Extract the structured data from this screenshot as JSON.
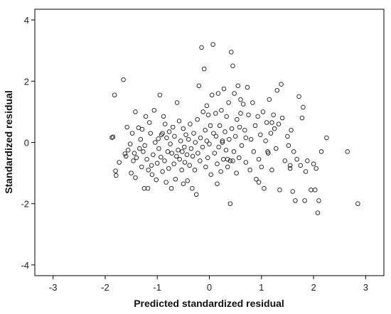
{
  "chart_data": {
    "type": "scatter",
    "title": "",
    "xlabel": "Predicted standardized residual",
    "ylabel": "Standardized residual",
    "xlim": [
      -3.35,
      3.35
    ],
    "ylim": [
      -4.35,
      4.35
    ],
    "xticks": [
      {
        "value": -3,
        "label": "-3"
      },
      {
        "value": -2,
        "label": "-2"
      },
      {
        "value": -1,
        "label": "-1"
      },
      {
        "value": 0,
        "label": "0"
      },
      {
        "value": 1,
        "label": "1"
      },
      {
        "value": 2,
        "label": "2"
      },
      {
        "value": 3,
        "label": "3"
      }
    ],
    "yticks": [
      {
        "value": -4,
        "label": "-4"
      },
      {
        "value": -2,
        "label": "-2"
      },
      {
        "value": 0,
        "label": "0"
      },
      {
        "value": 2,
        "label": "2"
      },
      {
        "value": 4,
        "label": "4"
      }
    ],
    "grid": false,
    "marker": "hollow-circle",
    "points": [
      [
        -1.87,
        0.16
      ],
      [
        -1.85,
        0.18
      ],
      [
        -1.82,
        1.55
      ],
      [
        -1.8,
        -0.93
      ],
      [
        -1.79,
        -1.08
      ],
      [
        -1.73,
        -0.65
      ],
      [
        -1.65,
        2.05
      ],
      [
        -1.62,
        -0.37
      ],
      [
        -1.6,
        -0.45
      ],
      [
        -1.58,
        0.5
      ],
      [
        -1.56,
        -0.25
      ],
      [
        -1.52,
        -0.05
      ],
      [
        -1.5,
        -1.0
      ],
      [
        -1.48,
        0.3
      ],
      [
        -1.46,
        -0.6
      ],
      [
        -1.44,
        -0.35
      ],
      [
        -1.42,
        1.0
      ],
      [
        -1.42,
        -1.15
      ],
      [
        -1.4,
        -0.5
      ],
      [
        -1.36,
        0.48
      ],
      [
        -1.34,
        -0.2
      ],
      [
        -1.32,
        0.1
      ],
      [
        -1.3,
        -0.8
      ],
      [
        -1.29,
        0.43
      ],
      [
        -1.27,
        -0.3
      ],
      [
        -1.25,
        -1.5
      ],
      [
        -1.24,
        -0.1
      ],
      [
        -1.22,
        0.85
      ],
      [
        -1.2,
        -0.55
      ],
      [
        -1.18,
        -1.5
      ],
      [
        -1.17,
        -0.9
      ],
      [
        -1.15,
        0.65
      ],
      [
        -1.13,
        0.3
      ],
      [
        -1.11,
        -0.75
      ],
      [
        -1.1,
        -1.05
      ],
      [
        -1.08,
        -0.4
      ],
      [
        -1.06,
        1.05
      ],
      [
        -1.04,
        0.0
      ],
      [
        -1.02,
        -1.22
      ],
      [
        -1.0,
        -0.68
      ],
      [
        -0.98,
        0.12
      ],
      [
        -0.97,
        -0.2
      ],
      [
        -0.95,
        1.55
      ],
      [
        -0.93,
        -0.48
      ],
      [
        -0.92,
        0.25
      ],
      [
        -0.9,
        -0.95
      ],
      [
        -0.88,
        0.85
      ],
      [
        -0.86,
        -0.6
      ],
      [
        -0.85,
        0.6
      ],
      [
        -0.83,
        -1.3
      ],
      [
        -0.82,
        0.15
      ],
      [
        -0.8,
        -0.3
      ],
      [
        -0.78,
        -0.85
      ],
      [
        -0.77,
        0.35
      ],
      [
        -0.75,
        -0.05
      ],
      [
        -0.73,
        -1.5
      ],
      [
        -0.72,
        -0.35
      ],
      [
        -0.7,
        0.5
      ],
      [
        -0.68,
        -0.7
      ],
      [
        -0.67,
        0.2
      ],
      [
        -0.65,
        -1.2
      ],
      [
        -0.63,
        -0.45
      ],
      [
        -0.62,
        1.3
      ],
      [
        -0.6,
        -0.25
      ],
      [
        -0.58,
        0.7
      ],
      [
        -0.57,
        -0.55
      ],
      [
        -0.55,
        0.05
      ],
      [
        -0.53,
        -0.9
      ],
      [
        -0.52,
        -0.3
      ],
      [
        -0.5,
        0.45
      ],
      [
        -0.48,
        -0.15
      ],
      [
        -0.47,
        -0.65
      ],
      [
        -0.45,
        0.25
      ],
      [
        -0.43,
        -0.4
      ],
      [
        -0.42,
        -1.25
      ],
      [
        -0.4,
        0.1
      ],
      [
        -0.38,
        -0.75
      ],
      [
        -0.37,
        0.6
      ],
      [
        -0.35,
        -0.2
      ],
      [
        -0.33,
        -1.5
      ],
      [
        -0.32,
        -0.45
      ],
      [
        -0.3,
        0.3
      ],
      [
        -0.28,
        -0.9
      ],
      [
        -0.27,
        0.0
      ],
      [
        -0.25,
        -1.7
      ],
      [
        -0.23,
        0.75
      ],
      [
        -0.22,
        -0.35
      ],
      [
        -0.2,
        1.85
      ],
      [
        -0.18,
        -0.6
      ],
      [
        -0.17,
        0.15
      ],
      [
        -0.15,
        3.1
      ],
      [
        -0.13,
        -0.15
      ],
      [
        -0.12,
        1.0
      ],
      [
        -0.1,
        2.4
      ],
      [
        -0.08,
        0.4
      ],
      [
        -0.07,
        -0.8
      ],
      [
        -0.05,
        1.2
      ],
      [
        -0.03,
        -0.5
      ],
      [
        -0.02,
        0.9
      ],
      [
        0.0,
        -0.05
      ],
      [
        0.02,
        0.55
      ],
      [
        0.03,
        -1.05
      ],
      [
        0.05,
        1.55
      ],
      [
        0.07,
        3.2
      ],
      [
        0.08,
        0.3
      ],
      [
        0.1,
        -0.35
      ],
      [
        0.12,
        0.95
      ],
      [
        0.13,
        0.2
      ],
      [
        0.15,
        -0.7
      ],
      [
        0.17,
        1.6
      ],
      [
        0.18,
        -0.15
      ],
      [
        0.2,
        0.55
      ],
      [
        0.22,
        -0.95
      ],
      [
        0.23,
        1.05
      ],
      [
        0.25,
        0.0
      ],
      [
        0.27,
        -0.55
      ],
      [
        0.28,
        1.75
      ],
      [
        0.3,
        0.35
      ],
      [
        0.32,
        -0.25
      ],
      [
        0.33,
        0.85
      ],
      [
        0.35,
        -0.8
      ],
      [
        0.37,
        1.3
      ],
      [
        0.38,
        0.1
      ],
      [
        0.4,
        -0.6
      ],
      [
        0.42,
        2.95
      ],
      [
        0.43,
        0.45
      ],
      [
        0.45,
        2.5
      ],
      [
        0.47,
        -0.3
      ],
      [
        0.48,
        1.6
      ],
      [
        0.5,
        0.2
      ],
      [
        0.52,
        -1.0
      ],
      [
        0.53,
        0.75
      ],
      [
        0.55,
        1.85
      ],
      [
        0.57,
        -0.5
      ],
      [
        0.58,
        0.5
      ],
      [
        0.6,
        1.4
      ],
      [
        0.62,
        -0.1
      ],
      [
        0.65,
        1.25
      ],
      [
        0.68,
        0.4
      ],
      [
        0.7,
        -0.65
      ],
      [
        0.73,
        1.8
      ],
      [
        0.75,
        0.9
      ],
      [
        0.78,
        -0.9
      ],
      [
        0.8,
        0.1
      ],
      [
        0.83,
        1.3
      ],
      [
        0.85,
        -0.3
      ],
      [
        0.88,
        0.55
      ],
      [
        0.9,
        -1.2
      ],
      [
        0.93,
        0.85
      ],
      [
        0.95,
        -0.55
      ],
      [
        0.98,
        0.25
      ],
      [
        1.0,
        -0.8
      ],
      [
        1.03,
        1.0
      ],
      [
        1.05,
        -1.5
      ],
      [
        1.08,
        0.05
      ],
      [
        1.1,
        0.65
      ],
      [
        1.13,
        -0.35
      ],
      [
        1.15,
        1.4
      ],
      [
        1.18,
        0.3
      ],
      [
        1.2,
        -0.9
      ],
      [
        1.23,
        0.9
      ],
      [
        1.25,
        0.45
      ],
      [
        1.28,
        -0.2
      ],
      [
        1.3,
        1.7
      ],
      [
        1.33,
        0.6
      ],
      [
        1.35,
        -1.55
      ],
      [
        1.38,
        1.9
      ],
      [
        1.4,
        0.8
      ],
      [
        1.45,
        -0.6
      ],
      [
        1.5,
        0.2
      ],
      [
        1.52,
        -0.1
      ],
      [
        1.55,
        -0.85
      ],
      [
        1.57,
        0.4
      ],
      [
        1.6,
        -1.6
      ],
      [
        1.62,
        -0.3
      ],
      [
        1.65,
        -1.9
      ],
      [
        1.68,
        -0.55
      ],
      [
        1.72,
        1.5
      ],
      [
        1.75,
        -0.75
      ],
      [
        1.78,
        0.8
      ],
      [
        1.8,
        1.15
      ],
      [
        1.83,
        -1.9
      ],
      [
        1.85,
        -0.95
      ],
      [
        1.88,
        -0.6
      ],
      [
        1.95,
        -1.55
      ],
      [
        2.0,
        -0.7
      ],
      [
        2.03,
        -1.55
      ],
      [
        2.05,
        -0.85
      ],
      [
        2.08,
        -2.3
      ],
      [
        2.1,
        -1.9
      ],
      [
        2.15,
        -0.3
      ],
      [
        2.25,
        0.15
      ],
      [
        2.65,
        -0.3
      ],
      [
        2.85,
        -2.0
      ],
      [
        0.4,
        -2.0
      ],
      [
        0.15,
        -1.35
      ],
      [
        -0.5,
        -1.35
      ],
      [
        0.95,
        -1.3
      ],
      [
        1.2,
        0.65
      ],
      [
        0.6,
        0.95
      ],
      [
        0.35,
        -0.55
      ],
      [
        -0.05,
        0.05
      ],
      [
        0.7,
        0.15
      ],
      [
        0.45,
        -0.6
      ],
      [
        1.55,
        -0.75
      ],
      [
        1.12,
        -0.3
      ],
      [
        0.25,
        0.05
      ],
      [
        -0.9,
        0.3
      ]
    ]
  }
}
